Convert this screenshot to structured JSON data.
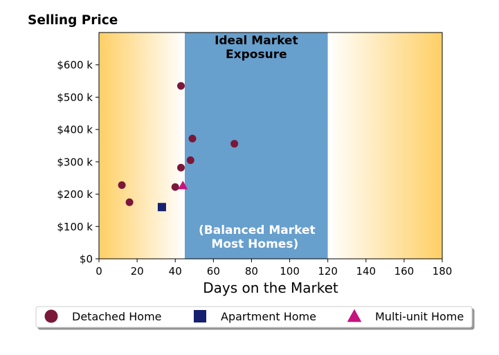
{
  "chart_data": {
    "type": "scatter",
    "title": "Selling Price",
    "xlabel": "Days on the Market",
    "ylabel": "",
    "xlim": [
      0,
      180
    ],
    "ylim": [
      0,
      700000
    ],
    "x_ticks": [
      0,
      20,
      40,
      60,
      80,
      100,
      120,
      140,
      160,
      180
    ],
    "x_tick_labels": [
      "0",
      "20",
      "40",
      "60",
      "80",
      "100",
      "120",
      "140",
      "160",
      "180"
    ],
    "y_ticks": [
      0,
      100000,
      200000,
      300000,
      400000,
      500000,
      600000
    ],
    "y_tick_labels": [
      "$0",
      "$100 k",
      "$200 k",
      "$300 k",
      "$400 k",
      "$500 k",
      "$600 k"
    ],
    "grid": false,
    "legend_position": "bottom",
    "ideal_band": {
      "x_start": 45,
      "x_end": 120,
      "title_line1": "Ideal Market",
      "title_line2": "Exposure",
      "sub_line1": "(Balanced Market",
      "sub_line2": "Most Homes)",
      "color": "#679fcd"
    },
    "outer_band_color": "#ffcf65",
    "series": [
      {
        "name": "Detached Home",
        "marker": "circle",
        "color": "#7b1739",
        "points": [
          [
            12,
            228000
          ],
          [
            16,
            175000
          ],
          [
            40,
            222000
          ],
          [
            43,
            535000
          ],
          [
            43,
            282000
          ],
          [
            48,
            305000
          ],
          [
            49,
            372000
          ],
          [
            71,
            356000
          ]
        ]
      },
      {
        "name": "Apartment Home",
        "marker": "square",
        "color": "#16206e",
        "points": [
          [
            33,
            160000
          ]
        ]
      },
      {
        "name": "Multi-unit Home",
        "marker": "triangle",
        "color": "#c6137e",
        "points": [
          [
            44,
            227000
          ]
        ]
      }
    ]
  }
}
